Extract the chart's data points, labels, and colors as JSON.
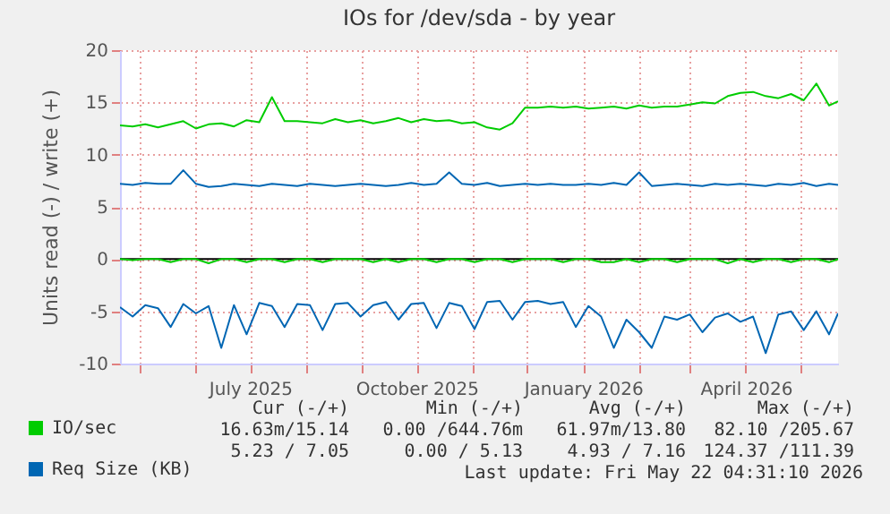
{
  "chart_data": {
    "type": "line",
    "title": "IOs for /dev/sda - by year",
    "ylabel": "Units read (-) / write (+)",
    "x": [
      "2025-04-20",
      "2025-04-27",
      "2025-05-04",
      "2025-05-11",
      "2025-05-18",
      "2025-05-25",
      "2025-06-01",
      "2025-06-08",
      "2025-06-15",
      "2025-06-22",
      "2025-06-29",
      "2025-07-06",
      "2025-07-13",
      "2025-07-20",
      "2025-07-27",
      "2025-08-03",
      "2025-08-10",
      "2025-08-17",
      "2025-08-24",
      "2025-08-31",
      "2025-09-07",
      "2025-09-14",
      "2025-09-21",
      "2025-09-28",
      "2025-10-05",
      "2025-10-12",
      "2025-10-19",
      "2025-10-26",
      "2025-11-02",
      "2025-11-09",
      "2025-11-16",
      "2025-11-23",
      "2025-11-30",
      "2025-12-07",
      "2025-12-14",
      "2025-12-21",
      "2025-12-28",
      "2026-01-04",
      "2026-01-11",
      "2026-01-18",
      "2026-01-25",
      "2026-02-01",
      "2026-02-08",
      "2026-02-15",
      "2026-02-22",
      "2026-03-01",
      "2026-03-08",
      "2026-03-15",
      "2026-03-22",
      "2026-03-29",
      "2026-04-05",
      "2026-04-12",
      "2026-04-19",
      "2026-04-26",
      "2026-05-03",
      "2026-05-10",
      "2026-05-17",
      "2026-05-22"
    ],
    "series": [
      {
        "name": "IO/sec",
        "color": "#00cc00",
        "values": [
          12.8,
          12.7,
          12.9,
          12.6,
          12.9,
          13.2,
          12.5,
          12.9,
          13.0,
          12.7,
          13.3,
          13.1,
          15.5,
          13.2,
          13.2,
          13.1,
          13.0,
          13.4,
          13.1,
          13.3,
          13.0,
          13.2,
          13.5,
          13.1,
          13.4,
          13.2,
          13.3,
          13.0,
          13.1,
          12.6,
          12.4,
          13.0,
          14.5,
          14.5,
          14.6,
          14.5,
          14.6,
          14.4,
          14.5,
          14.6,
          14.4,
          14.7,
          14.5,
          14.6,
          14.6,
          14.8,
          15.0,
          14.9,
          15.6,
          15.9,
          16.0,
          15.6,
          15.4,
          15.8,
          15.2,
          16.8,
          14.7,
          15.1
        ]
      },
      {
        "name": "Req Size (KB)",
        "color": "#0066b3",
        "values": [
          7.2,
          7.1,
          7.3,
          7.2,
          7.2,
          8.5,
          7.2,
          6.9,
          7.0,
          7.2,
          7.1,
          7.0,
          7.2,
          7.1,
          7.0,
          7.2,
          7.1,
          7.0,
          7.1,
          7.2,
          7.1,
          7.0,
          7.1,
          7.3,
          7.1,
          7.2,
          8.3,
          7.2,
          7.1,
          7.3,
          7.0,
          7.1,
          7.2,
          7.1,
          7.2,
          7.1,
          7.1,
          7.2,
          7.1,
          7.3,
          7.1,
          8.3,
          7.0,
          7.1,
          7.2,
          7.1,
          7.0,
          7.2,
          7.1,
          7.2,
          7.1,
          7.0,
          7.2,
          7.1,
          7.3,
          7.0,
          7.2,
          7.1
        ]
      },
      {
        "color": "#00cc00",
        "values": [
          0,
          -0.1,
          0,
          0,
          -0.3,
          0,
          0,
          -0.4,
          0,
          0,
          -0.3,
          0,
          0,
          -0.3,
          0,
          0,
          -0.3,
          0,
          0,
          0,
          -0.3,
          0,
          -0.3,
          0,
          0,
          -0.3,
          0,
          0,
          -0.3,
          0,
          0,
          -0.3,
          0,
          0,
          0,
          -0.3,
          0,
          0,
          -0.3,
          -0.3,
          0,
          -0.3,
          0,
          0,
          -0.3,
          0,
          0,
          0,
          -0.4,
          0,
          -0.3,
          0,
          0,
          -0.3,
          0,
          0,
          -0.3,
          0
        ]
      },
      {
        "color": "#0066b3",
        "values": [
          -4.6,
          -5.5,
          -4.4,
          -4.7,
          -6.5,
          -4.3,
          -5.2,
          -4.5,
          -8.5,
          -4.4,
          -7.2,
          -4.2,
          -4.5,
          -6.5,
          -4.3,
          -4.4,
          -6.8,
          -4.3,
          -4.2,
          -5.5,
          -4.4,
          -4.1,
          -5.8,
          -4.3,
          -4.2,
          -6.6,
          -4.2,
          -4.5,
          -6.7,
          -4.1,
          -4.0,
          -5.8,
          -4.1,
          -4.0,
          -4.3,
          -4.1,
          -6.5,
          -4.5,
          -5.5,
          -8.5,
          -5.8,
          -7.0,
          -8.5,
          -5.5,
          -5.8,
          -5.3,
          -7.0,
          -5.6,
          -5.2,
          -6.0,
          -5.5,
          -9.0,
          -5.3,
          -5.0,
          -6.8,
          -5.0,
          -7.2,
          -5.2
        ]
      }
    ],
    "xlim": [
      "2025-04-20",
      "2026-05-22"
    ],
    "xticks": [
      {
        "value": "2025-05-01",
        "label": null
      },
      {
        "value": "2025-06-01",
        "label": null
      },
      {
        "value": "2025-07-01",
        "label": "July 2025"
      },
      {
        "value": "2025-08-01",
        "label": null
      },
      {
        "value": "2025-09-01",
        "label": null
      },
      {
        "value": "2025-10-01",
        "label": "October 2025"
      },
      {
        "value": "2025-11-01",
        "label": null
      },
      {
        "value": "2025-12-01",
        "label": null
      },
      {
        "value": "2026-01-01",
        "label": "January 2026"
      },
      {
        "value": "2026-02-01",
        "label": null
      },
      {
        "value": "2026-03-01",
        "label": null
      },
      {
        "value": "2026-04-01",
        "label": "April 2026"
      },
      {
        "value": "2026-05-01",
        "label": null
      }
    ],
    "ylim": [
      -10,
      20
    ],
    "yticks": [
      -10,
      -5,
      0,
      5,
      10,
      15,
      20
    ],
    "ref_lines": [
      {
        "axis": "y",
        "value": 0,
        "color": "#000000"
      }
    ],
    "grid": true,
    "legend": "bottom left",
    "annotations": [
      "Cur (-/+)",
      "Min (-/+)",
      "Avg (-/+)",
      "Max (-/+)",
      "16.63m/15.14",
      "0.00 /644.76m",
      "61.97m/13.80",
      "82.10 /205.67",
      "5.23 / 7.05",
      "0.00 / 5.13",
      "4.93 / 7.16",
      "124.37 /111.39",
      "Last update: Fri May 22 04:31:10 2026"
    ]
  }
}
